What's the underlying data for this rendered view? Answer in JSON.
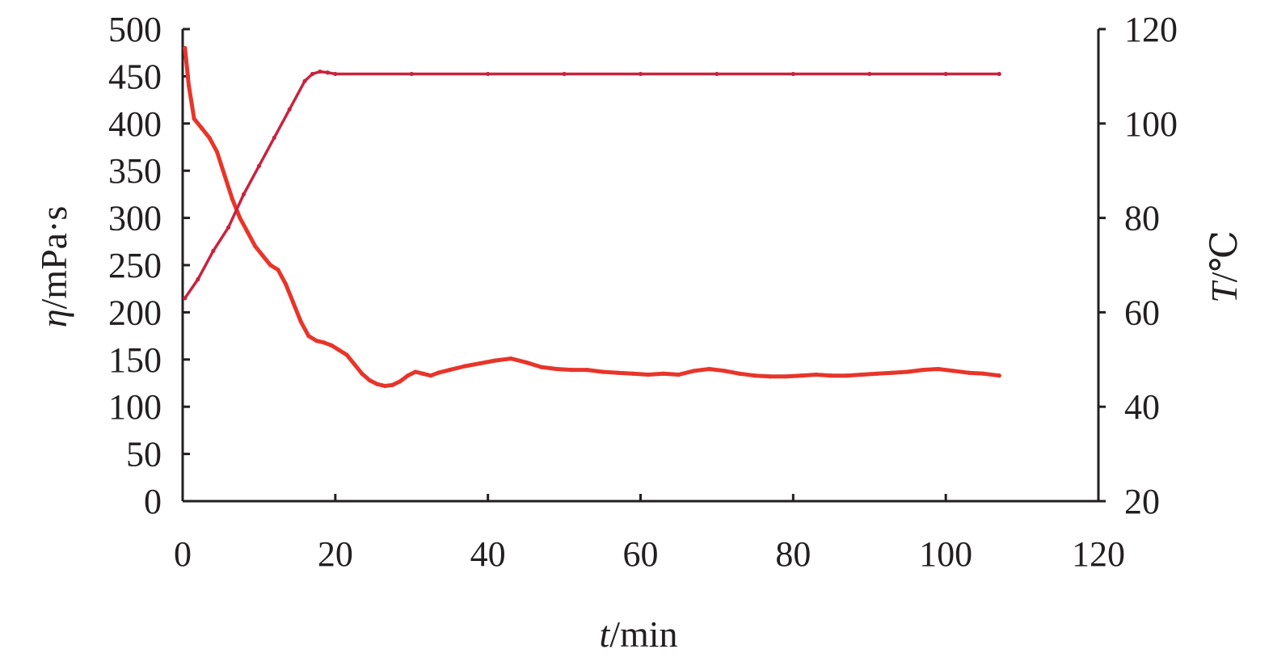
{
  "chart_data": {
    "type": "line",
    "x_label": {
      "var": "t",
      "unit": "/min"
    },
    "y_left_label": {
      "var": "η",
      "unit": "/mPa·s"
    },
    "y_right_label": {
      "var": "T",
      "unit": "/℃"
    },
    "xlim": [
      0,
      120
    ],
    "ylim_left": [
      0,
      500
    ],
    "ylim_right": [
      20,
      120
    ],
    "x_ticks": [
      "0",
      "20",
      "40",
      "60",
      "80",
      "100",
      "120"
    ],
    "y_left_ticks": [
      "0",
      "50",
      "100",
      "150",
      "200",
      "250",
      "300",
      "350",
      "400",
      "450",
      "500"
    ],
    "y_right_ticks": [
      "20",
      "40",
      "60",
      "80",
      "100",
      "120"
    ],
    "grid": false,
    "legend": "none",
    "series": [
      {
        "axis": "left",
        "color": "#e8352a",
        "x": [
          0.3,
          0.8,
          1.5,
          2.5,
          3.5,
          4.5,
          5.5,
          6.5,
          7.5,
          8.5,
          9.5,
          10.5,
          11.5,
          12.5,
          13.5,
          14.5,
          15.5,
          16.5,
          17.5,
          18.5,
          19.5,
          20.5,
          21.5,
          22.5,
          23.5,
          24.5,
          25.5,
          26.5,
          27.5,
          28.5,
          29.5,
          30.5,
          31.5,
          32.5,
          33.5,
          35,
          37,
          39,
          41,
          43,
          45,
          47,
          49,
          51,
          53,
          55,
          57,
          59,
          61,
          63,
          65,
          67,
          69,
          71,
          73,
          75,
          77,
          79,
          81,
          83,
          85,
          87,
          89,
          91,
          93,
          95,
          97,
          99,
          101,
          103,
          105,
          107
        ],
        "y": [
          480,
          440,
          405,
          395,
          385,
          370,
          345,
          320,
          300,
          285,
          270,
          260,
          250,
          245,
          230,
          210,
          190,
          175,
          170,
          168,
          165,
          160,
          155,
          145,
          135,
          128,
          124,
          122,
          123,
          127,
          133,
          137,
          135,
          133,
          136,
          139,
          143,
          146,
          149,
          151,
          147,
          142,
          140,
          139,
          139,
          137,
          136,
          135,
          134,
          135,
          134,
          138,
          140,
          138,
          135,
          133,
          132,
          132,
          133,
          134,
          133,
          133,
          134,
          135,
          136,
          137,
          139,
          140,
          138,
          136,
          135,
          133
        ]
      },
      {
        "axis": "right",
        "color": "#c8233f",
        "x": [
          0.3,
          2,
          4,
          6,
          8,
          10,
          12,
          14,
          16,
          17,
          18,
          19,
          20,
          30,
          40,
          50,
          60,
          70,
          80,
          90,
          100,
          107
        ],
        "y": [
          63,
          67,
          73,
          78,
          85,
          91,
          97,
          103,
          109,
          110.5,
          111,
          110.8,
          110.5,
          110.5,
          110.5,
          110.5,
          110.5,
          110.5,
          110.5,
          110.5,
          110.5,
          110.5
        ]
      }
    ]
  }
}
